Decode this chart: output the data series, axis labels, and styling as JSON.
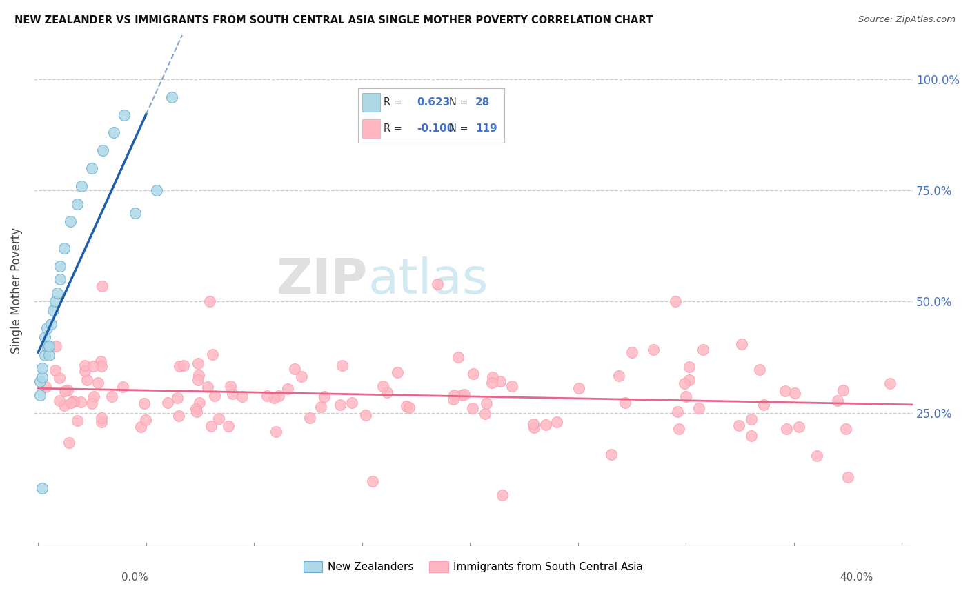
{
  "title": "NEW ZEALANDER VS IMMIGRANTS FROM SOUTH CENTRAL ASIA SINGLE MOTHER POVERTY CORRELATION CHART",
  "source": "Source: ZipAtlas.com",
  "ylabel": "Single Mother Poverty",
  "legend_label1": "New Zealanders",
  "legend_label2": "Immigrants from South Central Asia",
  "R1": 0.623,
  "N1": 28,
  "R2": -0.1,
  "N2": 119,
  "blue_color": "#ADD8E6",
  "blue_edge_color": "#6BAED6",
  "pink_color": "#FFB6C1",
  "pink_edge_color": "#FA9FB5",
  "blue_line_color": "#1E5FA8",
  "pink_line_color": "#E8648A",
  "watermark_zip": "ZIP",
  "watermark_atlas": "atlas",
  "ytick_vals": [
    0.25,
    0.5,
    0.75,
    1.0
  ],
  "ytick_labels": [
    "25.0%",
    "50.0%",
    "75.0%",
    "100.0%"
  ],
  "xlim": [
    -0.002,
    0.405
  ],
  "ylim": [
    -0.05,
    1.1
  ],
  "xaxis_left_label": "0.0%",
  "xaxis_right_label": "40.0%"
}
